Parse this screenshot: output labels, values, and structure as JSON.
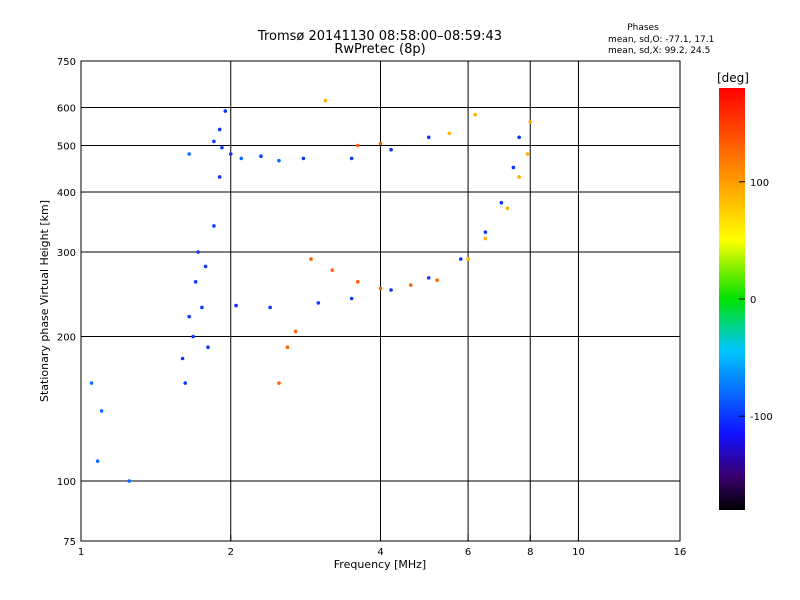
{
  "chart_data": {
    "type": "scatter",
    "title": "Tromsø 20141130 08:58:00–08:59:43",
    "subtitle": "RwPretec (8p)",
    "xlabel": "Frequency [MHz]",
    "ylabel": "Stationary phase Virtual Height [km]",
    "x_scale": "log",
    "y_scale": "log",
    "xlim": [
      1,
      16
    ],
    "ylim": [
      75,
      750
    ],
    "x_ticks": [
      1,
      2,
      4,
      6,
      8,
      10,
      16
    ],
    "y_ticks": [
      75,
      100,
      200,
      300,
      400,
      500,
      600,
      750
    ],
    "grid_x": [
      2,
      4,
      6,
      8,
      10
    ],
    "grid_y": [
      100,
      200,
      300,
      400,
      500,
      600
    ],
    "phase_info": {
      "title": "Phases",
      "line1": "mean, sd,O: -77.1, 17.1",
      "line2": "mean, sd,X:  99.2, 24.5"
    },
    "colorbar": {
      "label": "[deg]",
      "range": [
        -180,
        180
      ],
      "ticks": [
        100,
        0,
        -100
      ]
    },
    "series": [
      {
        "phase": -100,
        "points": [
          [
            1.85,
            510
          ],
          [
            1.92,
            495
          ],
          [
            2.0,
            480
          ],
          [
            2.3,
            475
          ],
          [
            2.8,
            470
          ],
          [
            3.5,
            470
          ],
          [
            4.2,
            490
          ],
          [
            5.0,
            520
          ],
          [
            2.05,
            232
          ],
          [
            2.4,
            230
          ],
          [
            3.0,
            235
          ],
          [
            3.5,
            240
          ],
          [
            4.2,
            250
          ],
          [
            5.0,
            265
          ],
          [
            5.8,
            290
          ],
          [
            6.5,
            330
          ],
          [
            7.0,
            380
          ],
          [
            7.4,
            450
          ],
          [
            7.6,
            520
          ],
          [
            1.6,
            180
          ],
          [
            1.65,
            220
          ],
          [
            1.7,
            260
          ],
          [
            1.72,
            300
          ],
          [
            1.75,
            230
          ],
          [
            1.8,
            190
          ],
          [
            1.62,
            160
          ],
          [
            1.68,
            200
          ],
          [
            1.78,
            280
          ],
          [
            1.85,
            340
          ],
          [
            1.9,
            430
          ],
          [
            1.9,
            540
          ],
          [
            1.95,
            590
          ]
        ]
      },
      {
        "phase": -80,
        "points": [
          [
            1.65,
            480
          ],
          [
            2.1,
            470
          ],
          [
            2.5,
            465
          ],
          [
            1.05,
            160
          ],
          [
            1.1,
            140
          ],
          [
            1.08,
            110
          ],
          [
            1.25,
            100
          ]
        ]
      },
      {
        "phase": 130,
        "points": [
          [
            2.9,
            290
          ],
          [
            3.2,
            275
          ],
          [
            3.6,
            260
          ],
          [
            4.0,
            252
          ],
          [
            4.6,
            256
          ],
          [
            5.2,
            262
          ],
          [
            2.5,
            160
          ],
          [
            2.6,
            190
          ],
          [
            2.7,
            205
          ],
          [
            3.6,
            500
          ],
          [
            4.0,
            505
          ]
        ]
      },
      {
        "phase": 90,
        "points": [
          [
            6.0,
            290
          ],
          [
            6.5,
            320
          ],
          [
            7.2,
            370
          ],
          [
            7.6,
            430
          ],
          [
            7.9,
            480
          ],
          [
            8.0,
            560
          ],
          [
            5.5,
            530
          ],
          [
            6.2,
            580
          ],
          [
            3.1,
            620
          ]
        ]
      }
    ]
  }
}
